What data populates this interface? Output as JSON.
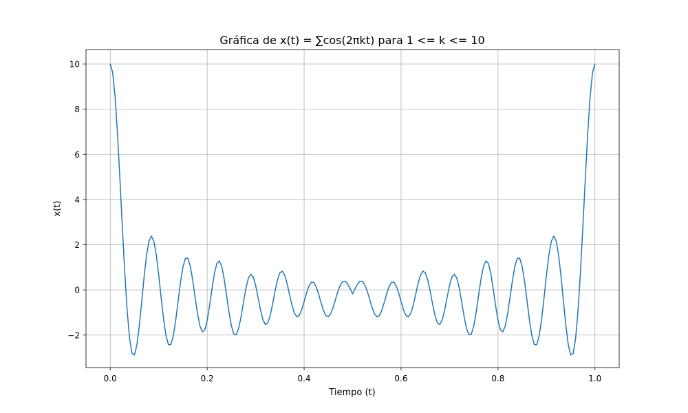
{
  "chart_data": {
    "type": "line",
    "title": "Gráfica de x(t) = ∑cos(2πkt) para 1 <= k <= 10",
    "xlabel": "Tiempo (t)",
    "ylabel": "x(t)",
    "xlim": [
      -0.05,
      1.05
    ],
    "ylim": [
      -3.44,
      10.64
    ],
    "xticks": [
      0.0,
      0.2,
      0.4,
      0.6,
      0.8,
      1.0
    ],
    "xtick_labels": [
      "0.0",
      "0.2",
      "0.4",
      "0.6",
      "0.8",
      "1.0"
    ],
    "yticks": [
      -2,
      0,
      2,
      4,
      6,
      8,
      10
    ],
    "ytick_labels": [
      "−2",
      "0",
      "2",
      "4",
      "6",
      "8",
      "10"
    ],
    "grid": true,
    "legend": "none",
    "series": [
      {
        "color": "#1f77b4",
        "x": [
          0.0,
          0.005,
          0.01,
          0.015,
          0.02,
          0.025,
          0.03,
          0.035,
          0.04,
          0.045,
          0.05,
          0.055,
          0.06,
          0.065,
          0.07,
          0.075,
          0.08,
          0.085,
          0.09,
          0.095,
          0.1,
          0.105,
          0.11,
          0.115,
          0.12,
          0.125,
          0.13,
          0.135,
          0.14,
          0.145,
          0.15,
          0.155,
          0.16,
          0.165,
          0.17,
          0.175,
          0.18,
          0.185,
          0.19,
          0.195,
          0.2,
          0.205,
          0.21,
          0.215,
          0.22,
          0.225,
          0.23,
          0.235,
          0.24,
          0.245,
          0.25,
          0.255,
          0.26,
          0.265,
          0.27,
          0.275,
          0.28,
          0.285,
          0.29,
          0.295,
          0.3,
          0.305,
          0.31,
          0.315,
          0.32,
          0.325,
          0.33,
          0.335,
          0.34,
          0.345,
          0.35,
          0.355,
          0.36,
          0.365,
          0.37,
          0.375,
          0.38,
          0.385,
          0.39,
          0.395,
          0.4,
          0.405,
          0.41,
          0.415,
          0.42,
          0.425,
          0.43,
          0.435,
          0.44,
          0.445,
          0.45,
          0.455,
          0.46,
          0.465,
          0.47,
          0.475,
          0.48,
          0.485,
          0.49,
          0.495,
          0.5,
          0.505,
          0.51,
          0.515,
          0.52,
          0.525,
          0.53,
          0.535,
          0.54,
          0.545,
          0.55,
          0.555,
          0.56,
          0.565,
          0.57,
          0.575,
          0.58,
          0.585,
          0.59,
          0.595,
          0.6,
          0.605,
          0.61,
          0.615,
          0.62,
          0.625,
          0.63,
          0.635,
          0.64,
          0.645,
          0.65,
          0.655,
          0.66,
          0.665,
          0.67,
          0.675,
          0.68,
          0.685,
          0.69,
          0.695,
          0.7,
          0.705,
          0.71,
          0.715,
          0.72,
          0.725,
          0.73,
          0.735,
          0.74,
          0.745,
          0.75,
          0.755,
          0.76,
          0.765,
          0.77,
          0.775,
          0.78,
          0.785,
          0.79,
          0.795,
          0.8,
          0.805,
          0.81,
          0.815,
          0.82,
          0.825,
          0.83,
          0.835,
          0.84,
          0.845,
          0.85,
          0.855,
          0.86,
          0.865,
          0.87,
          0.875,
          0.88,
          0.885,
          0.89,
          0.895,
          0.9,
          0.905,
          0.91,
          0.915,
          0.92,
          0.925,
          0.93,
          0.935,
          0.94,
          0.945,
          0.95,
          0.955,
          0.96,
          0.965,
          0.97,
          0.975,
          0.98,
          0.985,
          0.99,
          0.995,
          1.0
        ],
        "y": [
          10.0,
          9.627,
          8.552,
          6.908,
          4.9,
          2.771,
          0.76,
          -0.942,
          -2.164,
          -2.816,
          -2.885,
          -2.434,
          -1.588,
          -0.514,
          0.599,
          1.544,
          2.168,
          2.379,
          2.153,
          1.547,
          0.665,
          -0.338,
          -1.287,
          -2.024,
          -2.423,
          -2.426,
          -2.045,
          -1.361,
          -0.509,
          0.342,
          1.015,
          1.389,
          1.406,
          1.067,
          0.452,
          -0.309,
          -1.04,
          -1.597,
          -1.858,
          -1.774,
          -1.356,
          -0.695,
          0.06,
          0.736,
          1.174,
          1.283,
          1.04,
          0.493,
          -0.236,
          -0.985,
          -1.598,
          -1.952,
          -1.985,
          -1.702,
          -1.178,
          -0.536,
          0.082,
          0.523,
          0.694,
          0.572,
          0.195,
          -0.336,
          -0.887,
          -1.322,
          -1.533,
          -1.466,
          -1.136,
          -0.624,
          -0.053,
          0.441,
          0.756,
          0.829,
          0.648,
          0.268,
          -0.215,
          -0.686,
          -1.035,
          -1.19,
          -1.129,
          -0.88,
          -0.516,
          -0.134,
          0.175,
          0.343,
          0.327,
          0.133,
          -0.194,
          -0.576,
          -0.921,
          -1.143,
          -1.188,
          -1.05,
          -0.765,
          -0.404,
          -0.047,
          0.23,
          0.378,
          0.38,
          0.255,
          0.05,
          -0.177,
          0.05,
          0.255,
          0.38,
          0.378,
          0.23,
          -0.047,
          -0.404,
          -0.765,
          -1.05,
          -1.188,
          -1.143,
          -0.921,
          -0.576,
          -0.194,
          0.133,
          0.327,
          0.343,
          0.175,
          -0.134,
          -0.516,
          -0.88,
          -1.129,
          -1.19,
          -1.035,
          -0.686,
          -0.215,
          0.268,
          0.648,
          0.829,
          0.756,
          0.441,
          -0.053,
          -0.624,
          -1.136,
          -1.466,
          -1.533,
          -1.322,
          -0.887,
          -0.336,
          0.195,
          0.572,
          0.694,
          0.523,
          0.082,
          -0.536,
          -1.178,
          -1.702,
          -1.985,
          -1.952,
          -1.598,
          -0.985,
          -0.236,
          0.493,
          1.04,
          1.283,
          1.174,
          0.736,
          0.06,
          -0.695,
          -1.356,
          -1.774,
          -1.858,
          -1.597,
          -1.04,
          -0.309,
          0.452,
          1.067,
          1.406,
          1.389,
          1.015,
          0.342,
          -0.509,
          -1.361,
          -2.045,
          -2.426,
          -2.423,
          -2.024,
          -1.287,
          -0.338,
          0.665,
          1.547,
          2.153,
          2.379,
          2.168,
          1.544,
          0.599,
          -0.514,
          -1.588,
          -2.434,
          -2.885,
          -2.816,
          -2.164,
          -0.942,
          0.76,
          2.771,
          4.9,
          6.908,
          8.552,
          9.627,
          10.0
        ]
      }
    ]
  }
}
